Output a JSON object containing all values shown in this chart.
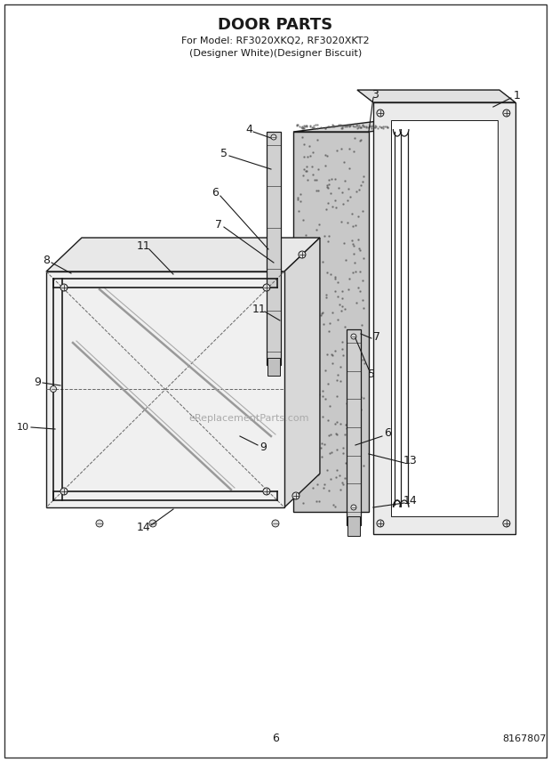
{
  "title": "DOOR PARTS",
  "subtitle_line1": "For Model: RF3020XKQ2, RF3020XKT2",
  "subtitle_line2": "(Designer White)(Designer Biscuit)",
  "page_number": "6",
  "part_number": "8167807",
  "bg": "#ffffff",
  "lc": "#1a1a1a",
  "watermark": "eReplacementParts.com"
}
